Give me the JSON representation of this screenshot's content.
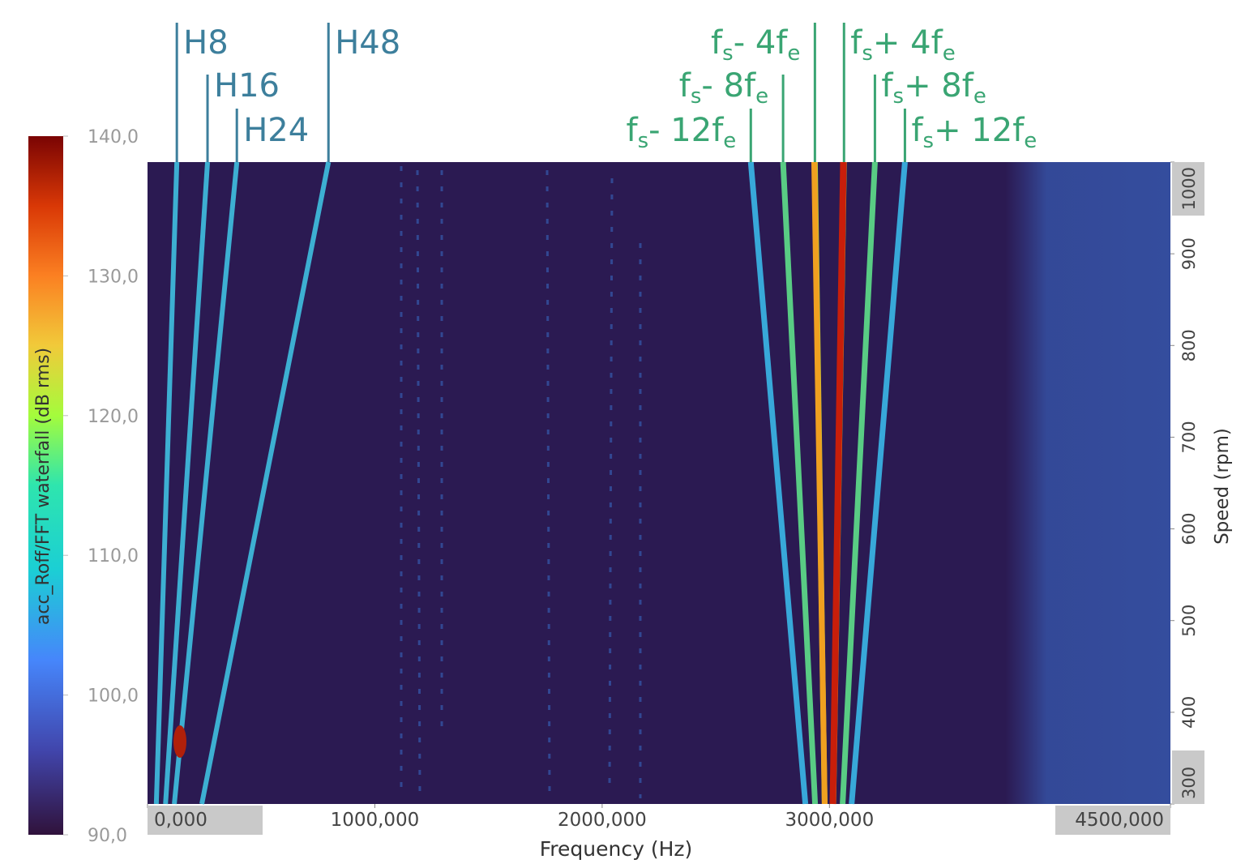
{
  "chart_data": {
    "type": "waterfall",
    "x_label": "Frequency (Hz)",
    "y_label": "Speed (rpm)",
    "colorbar_label": "acc_Roff/FFT waterfall (dB rms)",
    "xlim": [
      0,
      4500
    ],
    "xticks": [
      {
        "value": 0,
        "label": "0,000"
      },
      {
        "value": 1000,
        "label": "1000,000"
      },
      {
        "value": 2000,
        "label": "2000,000"
      },
      {
        "value": 3000,
        "label": "3000,000"
      },
      {
        "value": 4500,
        "label": "4500,000"
      }
    ],
    "ylim": [
      300,
      1000
    ],
    "yticks": [
      300,
      400,
      500,
      600,
      700,
      800,
      900,
      1000
    ],
    "clim": [
      90,
      140
    ],
    "cticks": [
      {
        "value": 90,
        "label": "90,0"
      },
      {
        "value": 100,
        "label": "100,0"
      },
      {
        "value": 110,
        "label": "110,0"
      },
      {
        "value": 120,
        "label": "120,0"
      },
      {
        "value": 130,
        "label": "130,0"
      },
      {
        "value": 140,
        "label": "140,0"
      }
    ],
    "annotations": [
      {
        "label": [
          "H8"
        ],
        "x": 129,
        "color": "#3d7f9c"
      },
      {
        "label": [
          "H16"
        ],
        "x": 264,
        "color": "#3d7f9c"
      },
      {
        "label": [
          "H24"
        ],
        "x": 393,
        "color": "#3d7f9c"
      },
      {
        "label": [
          "H48"
        ],
        "x": 796,
        "color": "#3d7f9c"
      },
      {
        "label": [
          "f",
          "s",
          "- 12f",
          "e"
        ],
        "x": 2654,
        "color": "#3aa573"
      },
      {
        "label": [
          "f",
          "s",
          "- 8f",
          "e"
        ],
        "x": 2796,
        "color": "#3aa573"
      },
      {
        "label": [
          "f",
          "s",
          "- 4f",
          "e"
        ],
        "x": 2936,
        "color": "#3aa573"
      },
      {
        "label": [
          "f",
          "s",
          "+ 4f",
          "e"
        ],
        "x": 3064,
        "color": "#3aa573"
      },
      {
        "label": [
          "f",
          "s",
          "+ 8f",
          "e"
        ],
        "x": 3200,
        "color": "#3aa573"
      },
      {
        "label": [
          "f",
          "s",
          "+ 12f",
          "e"
        ],
        "x": 3332,
        "color": "#3aa573"
      }
    ]
  }
}
